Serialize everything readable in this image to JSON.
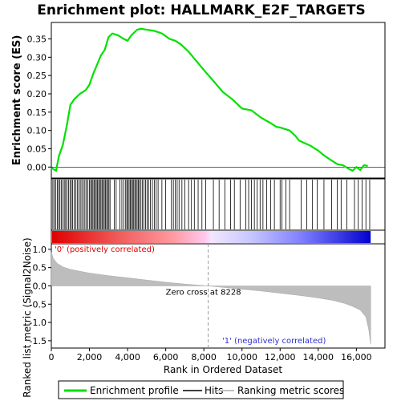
{
  "chart_data": {
    "type": "line",
    "title": "Enrichment plot: HALLMARK_E2F_TARGETS",
    "top_panel": {
      "ylabel": "Enrichment score (ES)",
      "ylim": [
        -0.03,
        0.395
      ],
      "yticks": [
        0.0,
        0.05,
        0.1,
        0.15,
        0.2,
        0.25,
        0.3,
        0.35
      ],
      "ytick_labels": [
        "0.00",
        "0.05",
        "0.10",
        "0.15",
        "0.20",
        "0.25",
        "0.30",
        "0.35"
      ],
      "series": [
        {
          "name": "Enrichment profile",
          "color": "#00e000",
          "x": [
            0,
            250,
            400,
            600,
            800,
            1000,
            1200,
            1500,
            1800,
            2000,
            2200,
            2400,
            2600,
            2800,
            3000,
            3200,
            3500,
            3800,
            4000,
            4200,
            4500,
            4700,
            5000,
            5400,
            5800,
            6200,
            6500,
            6800,
            7200,
            7600,
            8000,
            8500,
            9000,
            9500,
            10000,
            10500,
            11000,
            11500,
            11800,
            12000,
            12200,
            12500,
            12800,
            13000,
            13300,
            13600,
            14000,
            14300,
            14700,
            15000,
            15300,
            15600,
            15800,
            16000,
            16200,
            16400,
            16600
          ],
          "y": [
            -0.002,
            -0.01,
            0.03,
            0.06,
            0.11,
            0.17,
            0.185,
            0.2,
            0.21,
            0.225,
            0.255,
            0.28,
            0.305,
            0.32,
            0.355,
            0.365,
            0.36,
            0.35,
            0.345,
            0.36,
            0.375,
            0.378,
            0.375,
            0.372,
            0.365,
            0.35,
            0.345,
            0.335,
            0.315,
            0.29,
            0.265,
            0.235,
            0.205,
            0.185,
            0.16,
            0.155,
            0.135,
            0.12,
            0.11,
            0.108,
            0.105,
            0.1,
            0.085,
            0.072,
            0.065,
            0.058,
            0.045,
            0.032,
            0.018,
            0.008,
            0.005,
            -0.005,
            -0.01,
            0.0,
            -0.008,
            0.005,
            0.003
          ]
        }
      ]
    },
    "hits_panel": {
      "name": "Hits",
      "positions": [
        80,
        150,
        230,
        310,
        380,
        450,
        520,
        600,
        680,
        750,
        820,
        900,
        980,
        1050,
        1120,
        1200,
        1280,
        1360,
        1440,
        1520,
        1600,
        1680,
        1760,
        1840,
        1920,
        2000,
        2060,
        2120,
        2180,
        2240,
        2300,
        2360,
        2420,
        2480,
        2540,
        2600,
        2660,
        2720,
        2780,
        2840,
        2900,
        2960,
        3020,
        3080,
        3300,
        3400,
        3600,
        3700,
        3800,
        3900,
        3960,
        4020,
        4080,
        4140,
        4200,
        4260,
        4320,
        4380,
        4440,
        4500,
        4560,
        4620,
        4700,
        4780,
        4860,
        4940,
        5020,
        5100,
        5200,
        5300,
        5400,
        5500,
        5600,
        5800,
        6000,
        6300,
        6400,
        6500,
        6600,
        6700,
        6850,
        7000,
        7200,
        7350,
        7500,
        7700,
        7900,
        8100,
        8500,
        8800,
        9100,
        9400,
        9600,
        9900,
        10200,
        10350,
        10500,
        10650,
        10800,
        10950,
        11100,
        11300,
        11500,
        11700,
        12000,
        12100,
        12300,
        12500,
        13100,
        13400,
        13700,
        13950,
        14300,
        14700,
        15000,
        15200,
        15500,
        15900,
        16100,
        16300,
        16500,
        16700
      ]
    },
    "rank_metric_panel": {
      "name": "Ranking metric scores",
      "ylabel": "Ranked list metric (Signal2Noise)",
      "ylim": [
        -1.7,
        1.15
      ],
      "yticks": [
        -1.5,
        -1.0,
        -0.5,
        0.0,
        0.5,
        1.0
      ],
      "ytick_labels": [
        "-1.5",
        "-1.0",
        "-0.5",
        "0.0",
        "0.5",
        "1.0"
      ],
      "x": [
        0,
        100,
        300,
        600,
        1000,
        1500,
        2000,
        3000,
        4000,
        5000,
        6000,
        7000,
        8228,
        9000,
        10000,
        11000,
        12000,
        13000,
        14000,
        14800,
        15400,
        15800,
        16200,
        16500,
        16650,
        16750
      ],
      "y": [
        0.92,
        0.75,
        0.62,
        0.52,
        0.45,
        0.4,
        0.35,
        0.28,
        0.22,
        0.16,
        0.1,
        0.05,
        0.0,
        -0.04,
        -0.09,
        -0.14,
        -0.2,
        -0.26,
        -0.33,
        -0.4,
        -0.48,
        -0.56,
        -0.66,
        -0.85,
        -1.2,
        -1.6
      ],
      "zero_cross": 8228,
      "zero_cross_label": "Zero cross at 8228",
      "pos_label": "'0' (positively correlated)",
      "neg_label": "'1' (negatively correlated)"
    },
    "xaxis": {
      "xlabel": "Rank in Ordered Dataset",
      "xlim": [
        0,
        17500
      ],
      "xticks": [
        0,
        2000,
        4000,
        6000,
        8000,
        10000,
        12000,
        14000,
        16000
      ],
      "xtick_labels": [
        "0",
        "2,000",
        "4,000",
        "6,000",
        "8,000",
        "10,000",
        "12,000",
        "14,000",
        "16,000"
      ],
      "n_genes": 16750
    },
    "legend": [
      {
        "label": "Enrichment profile",
        "color": "#00e000"
      },
      {
        "label": "Hits",
        "color": "#000000"
      },
      {
        "label": "Ranking metric scores",
        "color": "#c0c0c0"
      }
    ]
  }
}
